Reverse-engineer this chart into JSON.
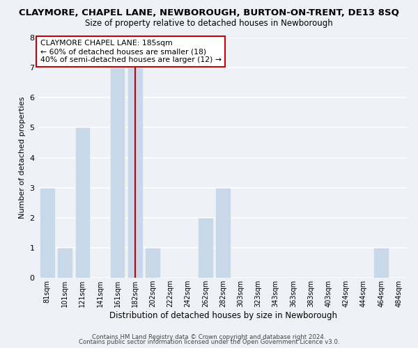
{
  "title": "CLAYMORE, CHAPEL LANE, NEWBOROUGH, BURTON-ON-TRENT, DE13 8SQ",
  "subtitle": "Size of property relative to detached houses in Newborough",
  "xlabel": "Distribution of detached houses by size in Newborough",
  "ylabel": "Number of detached properties",
  "bar_color": "#c8d8e8",
  "bins": [
    "81sqm",
    "101sqm",
    "121sqm",
    "141sqm",
    "161sqm",
    "182sqm",
    "202sqm",
    "222sqm",
    "242sqm",
    "262sqm",
    "282sqm",
    "303sqm",
    "323sqm",
    "343sqm",
    "363sqm",
    "383sqm",
    "403sqm",
    "424sqm",
    "444sqm",
    "464sqm",
    "484sqm"
  ],
  "counts": [
    3,
    1,
    5,
    0,
    7,
    7,
    1,
    0,
    0,
    2,
    3,
    0,
    0,
    0,
    0,
    0,
    0,
    0,
    0,
    1,
    0
  ],
  "reference_bin_idx": 5,
  "reference_line_color": "#cc0000",
  "annotation_text": "CLAYMORE CHAPEL LANE: 185sqm\n← 60% of detached houses are smaller (18)\n40% of semi-detached houses are larger (12) →",
  "ylim": [
    0,
    8
  ],
  "yticks": [
    0,
    1,
    2,
    3,
    4,
    5,
    6,
    7,
    8
  ],
  "background_color": "#eef2f7",
  "grid_color": "#ffffff",
  "footer1": "Contains HM Land Registry data © Crown copyright and database right 2024.",
  "footer2": "Contains public sector information licensed under the Open Government Licence v3.0."
}
